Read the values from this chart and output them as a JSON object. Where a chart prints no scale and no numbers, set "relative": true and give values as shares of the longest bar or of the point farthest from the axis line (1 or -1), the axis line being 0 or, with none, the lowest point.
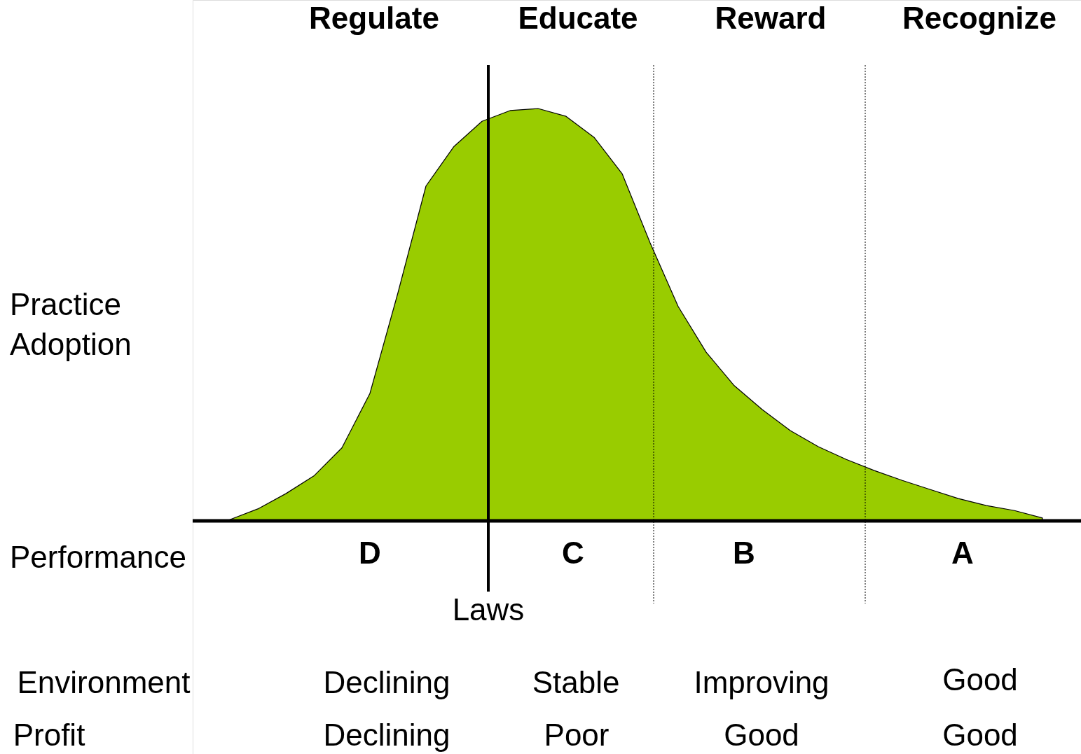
{
  "chart_data": {
    "type": "area",
    "relative": true,
    "xlabel": "Performance",
    "ylabel": "Practice Adoption",
    "grid": false,
    "categories": [
      null,
      null,
      null,
      null,
      null,
      null,
      null,
      null,
      null,
      null,
      null,
      null,
      null,
      null,
      null,
      null,
      null,
      null,
      null,
      null,
      null,
      null,
      null,
      null,
      null,
      null,
      null,
      null,
      null,
      null
    ],
    "series": [
      {
        "color": "#99cc00",
        "values": [
          0.003,
          0.029,
          0.066,
          0.109,
          0.177,
          0.309,
          0.553,
          0.812,
          0.908,
          0.969,
          0.995,
          1.0,
          0.981,
          0.93,
          0.842,
          0.674,
          0.52,
          0.409,
          0.328,
          0.27,
          0.219,
          0.18,
          0.149,
          0.122,
          0.098,
          0.076,
          0.054,
          0.037,
          0.025,
          0.007
        ]
      }
    ],
    "ref_lines": [
      {
        "axis": "x",
        "label": "Laws",
        "line_style": "solid"
      },
      {
        "axis": "x",
        "line_style": "dotted"
      },
      {
        "axis": "x",
        "line_style": "dotted"
      }
    ],
    "annotations": [
      "Regulate",
      "Educate",
      "Reward",
      "Recognize",
      "D",
      "C",
      "B",
      "A",
      "Environment",
      "Declining",
      "Stable",
      "Improving",
      "Good",
      "Profit",
      "Declining",
      "Poor",
      "Good",
      "Good"
    ]
  }
}
